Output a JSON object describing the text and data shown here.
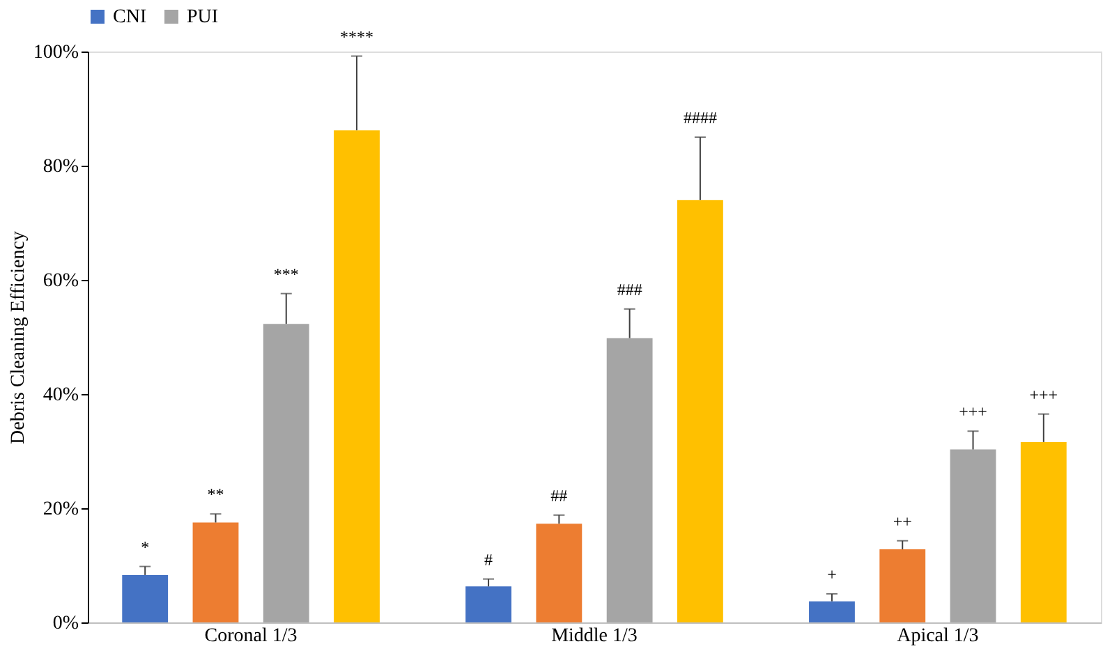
{
  "chart_data": {
    "type": "bar",
    "ylabel": "Debris Cleaning Efficiency",
    "categories": [
      "Coronal 1/3",
      "Middle 1/3",
      "Apical 1/3"
    ],
    "series": [
      {
        "name": "CNI",
        "color": "#4472c4",
        "values": [
          8.3,
          6.3,
          3.7
        ],
        "errors": [
          [
            8.3,
            9.8
          ],
          [
            6.3,
            7.6
          ],
          [
            3.7,
            5.0
          ]
        ]
      },
      {
        "color": "#ed7d31",
        "values": [
          17.5,
          17.3,
          12.8
        ],
        "errors": [
          [
            17.5,
            19.0
          ],
          [
            17.3,
            18.8
          ],
          [
            12.8,
            14.3
          ]
        ]
      },
      {
        "name": "PUI",
        "color": "#a5a5a5",
        "values": [
          52.3,
          49.8,
          30.3
        ],
        "errors": [
          [
            52.3,
            57.6
          ],
          [
            49.8,
            54.9
          ],
          [
            30.3,
            33.5
          ]
        ]
      },
      {
        "color": "#ffc000",
        "values": [
          86.2,
          74.0,
          31.6
        ],
        "errors": [
          [
            86.2,
            99.2
          ],
          [
            74.0,
            85.0
          ],
          [
            31.6,
            36.5
          ]
        ]
      }
    ],
    "ylim": [
      0,
      100
    ],
    "yticks": [
      {
        "value": 0,
        "label": "0%"
      },
      {
        "value": 20,
        "label": "20%"
      },
      {
        "value": 40,
        "label": "40%"
      },
      {
        "value": 60,
        "label": "60%"
      },
      {
        "value": 80,
        "label": "80%"
      },
      {
        "value": 100,
        "label": "100%"
      }
    ],
    "annotations": [
      "*",
      "**",
      "***",
      "****",
      "#",
      "##",
      "###",
      "####",
      "+",
      "++",
      "+++",
      "+++"
    ],
    "grid": false,
    "legend": "top"
  }
}
